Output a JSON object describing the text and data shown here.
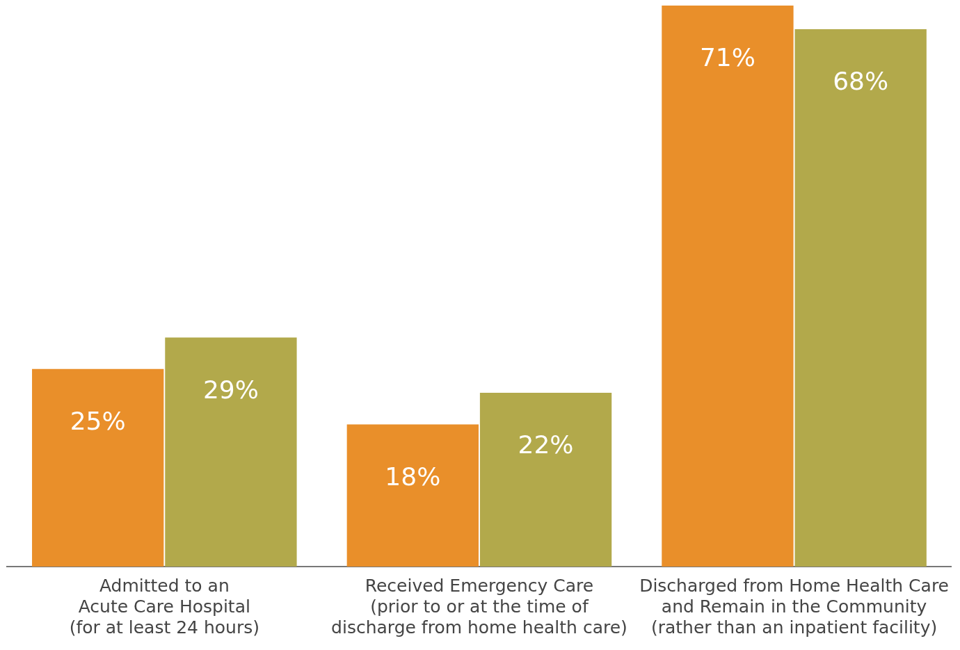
{
  "chart_data": {
    "type": "bar",
    "categories": [
      "Admitted to an\nAcute Care Hospital\n(for at least 24 hours)",
      "Received Emergency Care\n(prior to or at the time of\ndischarge from home health care)",
      "Discharged from Home Health Care\nand Remain in the Community\n(rather than an inpatient facility)"
    ],
    "series": [
      {
        "color": "#e98f2a",
        "values": [
          25,
          18,
          71
        ],
        "value_labels": [
          "25%",
          "18%",
          "71%"
        ]
      },
      {
        "color": "#b2a94b",
        "values": [
          29,
          22,
          68
        ],
        "value_labels": [
          "29%",
          "22%",
          "68%"
        ]
      }
    ],
    "legend": false
  }
}
